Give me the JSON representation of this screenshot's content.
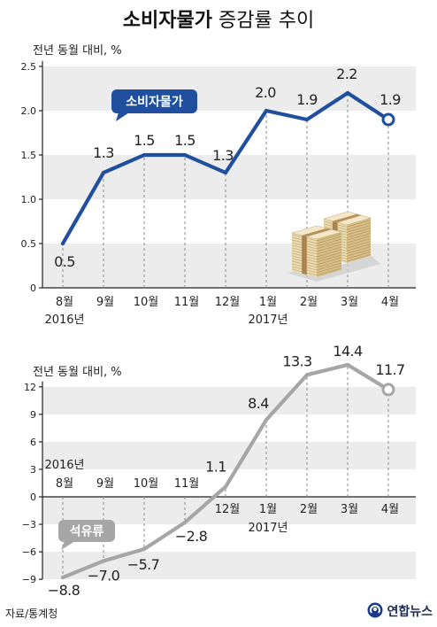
{
  "title": {
    "bold": "소비자물가",
    "regular": "증감률 추이"
  },
  "source": "자료/통계청",
  "publisher": "연합뉴스",
  "icons": {
    "publisher_logo": "yonhap-logo-icon",
    "illustration": "money-stack-illustration"
  },
  "colors": {
    "band": "#ececec",
    "publisher": "#1b3b87"
  },
  "chart_data": [
    {
      "type": "line",
      "ylabel": "전년 동월 대비, %",
      "categories": [
        "8월",
        "9월",
        "10월",
        "11월",
        "12월",
        "1월",
        "2월",
        "3월",
        "4월"
      ],
      "year_labels": [
        {
          "text": "2016년",
          "start_index": 0
        },
        {
          "text": "2017년",
          "start_index": 5
        }
      ],
      "series": [
        {
          "name": "소비자물가",
          "color": "#1f4f9e",
          "values": [
            0.5,
            1.3,
            1.5,
            1.5,
            1.3,
            2.0,
            1.9,
            2.2,
            1.9
          ],
          "labels": [
            "0.5",
            "1.3",
            "1.5",
            "1.5",
            "1.3",
            "2.0",
            "1.9",
            "2.2",
            "1.9"
          ]
        }
      ],
      "ylim": [
        0,
        2.5
      ],
      "yticks": [
        0,
        0.5,
        1.0,
        1.5,
        2.0,
        2.5
      ],
      "ytick_labels": [
        "0",
        "0.5",
        "1.0",
        "1.5",
        "2.0",
        "2.5"
      ],
      "grid": true,
      "legend": "top-left"
    },
    {
      "type": "line",
      "ylabel": "전년 동월 대비, %",
      "categories": [
        "8월",
        "9월",
        "10월",
        "11월",
        "12월",
        "1월",
        "2월",
        "3월",
        "4월"
      ],
      "year_labels": [
        {
          "text": "2016년",
          "start_index": 0
        },
        {
          "text": "2017년",
          "start_index": 5
        }
      ],
      "series": [
        {
          "name": "석유류",
          "color": "#a6a6a6",
          "values": [
            -8.8,
            -7.0,
            -5.7,
            -2.8,
            1.1,
            8.4,
            13.3,
            14.4,
            11.7
          ],
          "labels": [
            "−8.8",
            "−7.0",
            "−5.7",
            "−2.8",
            "1.1",
            "8.4",
            "13.3",
            "14.4",
            "11.7"
          ]
        }
      ],
      "ylim": [
        -9,
        12
      ],
      "yticks": [
        -9,
        -6,
        -3,
        0,
        3,
        6,
        9,
        12
      ],
      "ytick_labels": [
        "−9",
        "−6",
        "−3",
        "0",
        "3",
        "6",
        "9",
        "12"
      ],
      "grid": true,
      "legend": "bottom-left"
    }
  ]
}
